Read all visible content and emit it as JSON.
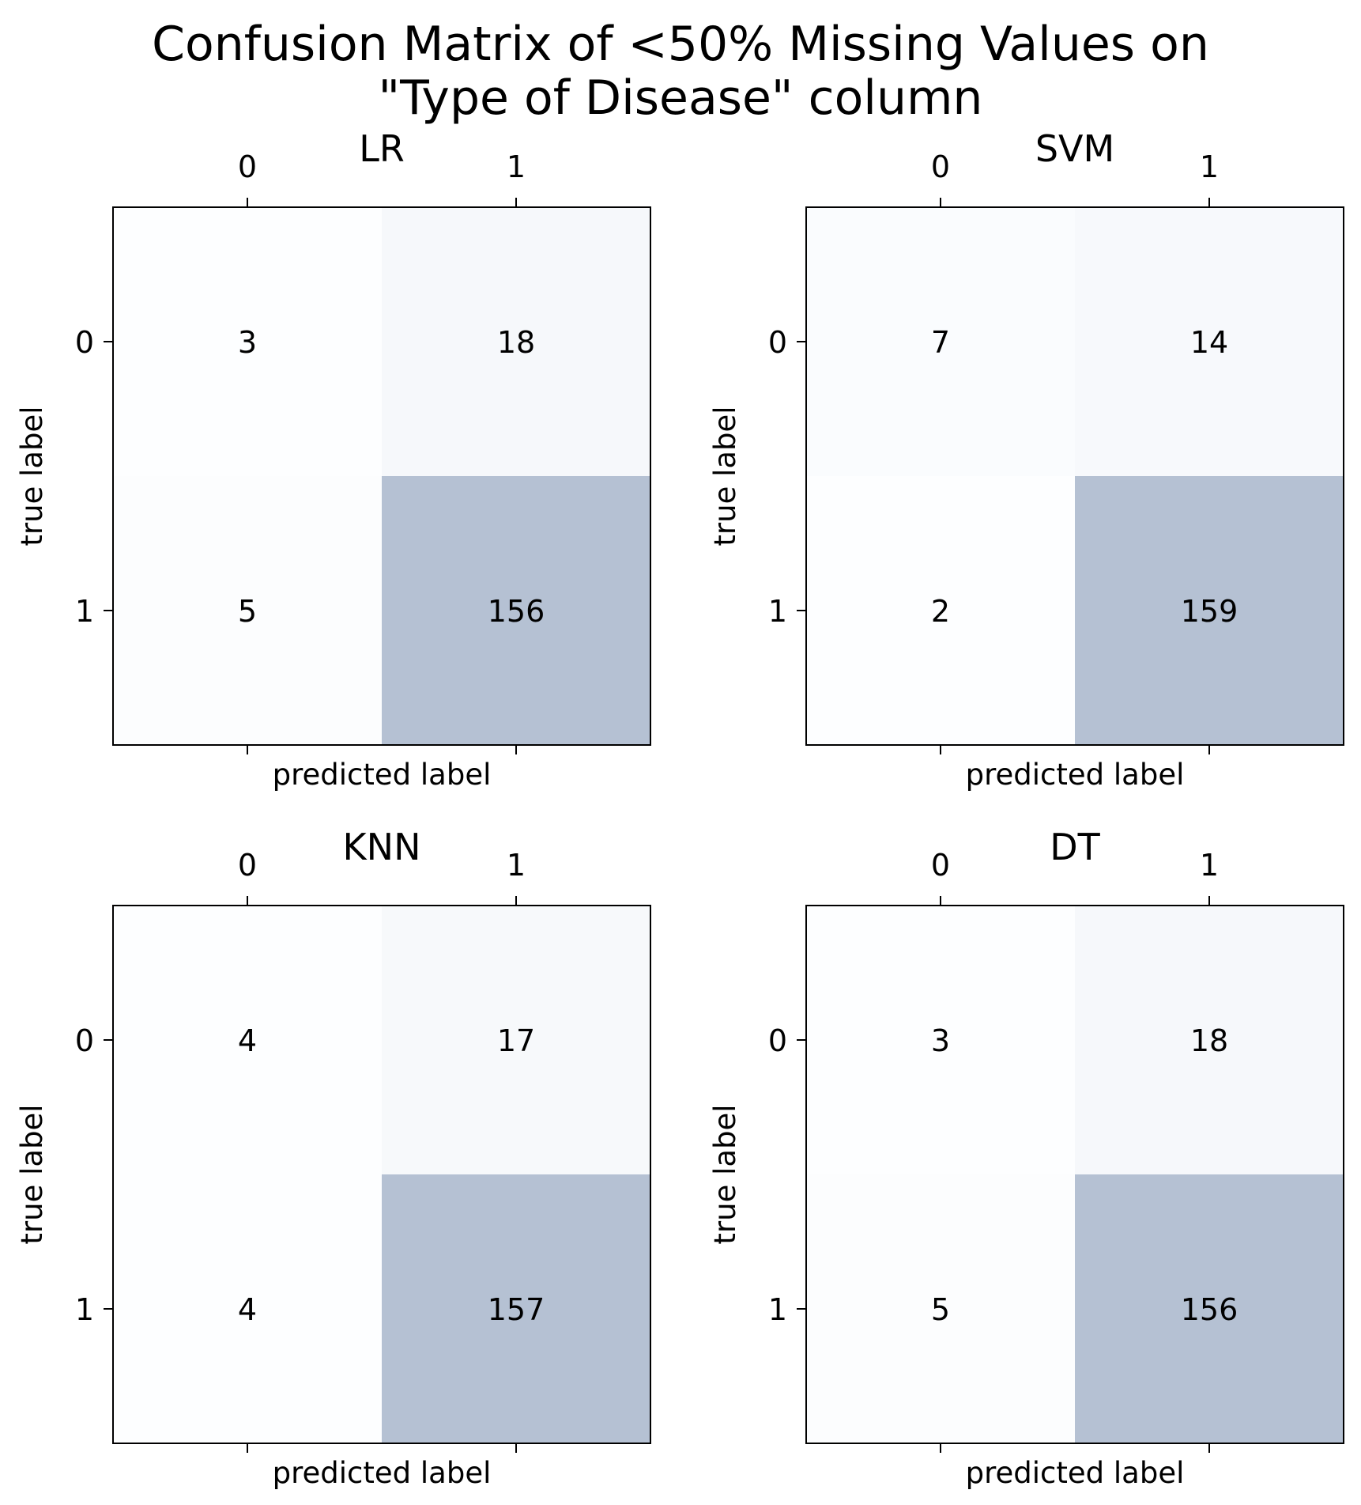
{
  "figure": {
    "title_line1": "Confusion Matrix of <50% Missing Values on",
    "title_line2": "\"Type of Disease\" column"
  },
  "colors": {
    "cell_min": "#f7fbff",
    "cell_max": "#08306b",
    "alpha": 0.3,
    "axes": "#000000"
  },
  "chart_data": [
    {
      "type": "heatmap",
      "title": "LR",
      "xlabel": "predicted label",
      "ylabel": "true label",
      "x_tick_labels": [
        "0",
        "1"
      ],
      "y_tick_labels": [
        "0",
        "1"
      ],
      "matrix": [
        [
          3,
          18
        ],
        [
          5,
          156
        ]
      ],
      "grid": false
    },
    {
      "type": "heatmap",
      "title": "SVM",
      "xlabel": "predicted label",
      "ylabel": "true label",
      "x_tick_labels": [
        "0",
        "1"
      ],
      "y_tick_labels": [
        "0",
        "1"
      ],
      "matrix": [
        [
          7,
          14
        ],
        [
          2,
          159
        ]
      ],
      "grid": false
    },
    {
      "type": "heatmap",
      "title": "KNN",
      "xlabel": "predicted label",
      "ylabel": "true label",
      "x_tick_labels": [
        "0",
        "1"
      ],
      "y_tick_labels": [
        "0",
        "1"
      ],
      "matrix": [
        [
          4,
          17
        ],
        [
          4,
          157
        ]
      ],
      "grid": false
    },
    {
      "type": "heatmap",
      "title": "DT",
      "xlabel": "predicted label",
      "ylabel": "true label",
      "x_tick_labels": [
        "0",
        "1"
      ],
      "y_tick_labels": [
        "0",
        "1"
      ],
      "matrix": [
        [
          3,
          18
        ],
        [
          5,
          156
        ]
      ],
      "grid": false
    }
  ]
}
